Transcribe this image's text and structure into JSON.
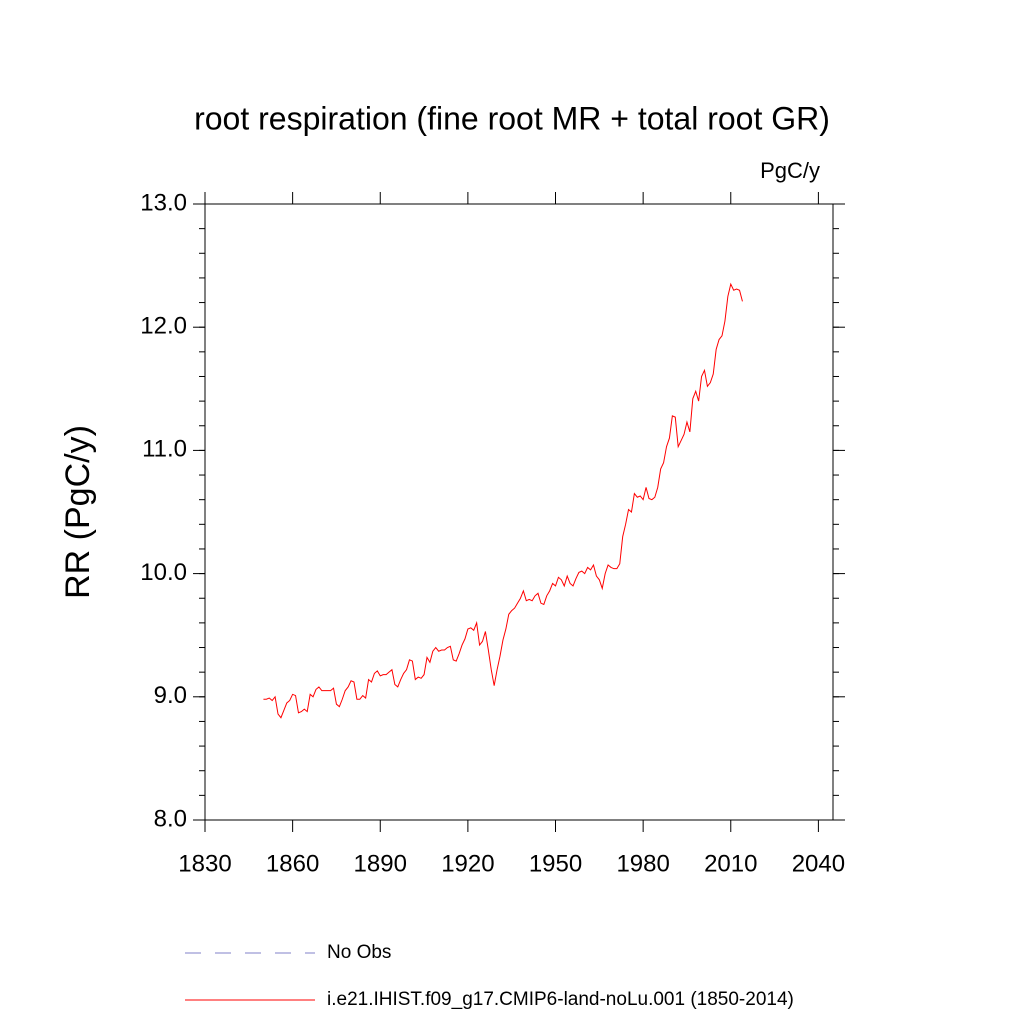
{
  "chart_data": {
    "type": "line",
    "title": "root respiration (fine root MR + total root GR)",
    "units": "PgC/y",
    "y_label": "RR  (PgC/y)",
    "xlim": [
      1830,
      2045
    ],
    "xticks": [
      1830,
      1860,
      1890,
      1920,
      1950,
      1980,
      2010,
      2040
    ],
    "ylim": [
      8,
      13
    ],
    "yticks": [
      {
        "value": 8,
        "label": "8.0"
      },
      {
        "value": 9,
        "label": "9.0"
      },
      {
        "value": 10,
        "label": "10.0"
      },
      {
        "value": 11,
        "label": "11.0"
      },
      {
        "value": 12,
        "label": "12.0"
      },
      {
        "value": 13,
        "label": "13.0"
      }
    ],
    "y_minor_step": 0.2,
    "obs": {
      "name": "No Obs",
      "color": "#8080c8",
      "dashed": true
    },
    "x": [
      1850,
      1851,
      1852,
      1853,
      1854,
      1855,
      1856,
      1857,
      1858,
      1859,
      1860,
      1861,
      1862,
      1863,
      1864,
      1865,
      1866,
      1867,
      1868,
      1869,
      1870,
      1871,
      1872,
      1873,
      1874,
      1875,
      1876,
      1877,
      1878,
      1879,
      1880,
      1881,
      1882,
      1883,
      1884,
      1885,
      1886,
      1887,
      1888,
      1889,
      1890,
      1891,
      1892,
      1893,
      1894,
      1895,
      1896,
      1897,
      1898,
      1899,
      1900,
      1901,
      1902,
      1903,
      1904,
      1905,
      1906,
      1907,
      1908,
      1909,
      1910,
      1911,
      1912,
      1913,
      1914,
      1915,
      1916,
      1917,
      1918,
      1919,
      1920,
      1921,
      1922,
      1923,
      1924,
      1925,
      1926,
      1927,
      1928,
      1929,
      1930,
      1931,
      1932,
      1933,
      1934,
      1935,
      1936,
      1937,
      1938,
      1939,
      1940,
      1941,
      1942,
      1943,
      1944,
      1945,
      1946,
      1947,
      1948,
      1949,
      1950,
      1951,
      1952,
      1953,
      1954,
      1955,
      1956,
      1957,
      1958,
      1959,
      1960,
      1961,
      1962,
      1963,
      1964,
      1965,
      1966,
      1967,
      1968,
      1969,
      1970,
      1971,
      1972,
      1973,
      1974,
      1975,
      1976,
      1977,
      1978,
      1979,
      1980,
      1981,
      1982,
      1983,
      1984,
      1985,
      1986,
      1987,
      1988,
      1989,
      1990,
      1991,
      1992,
      1993,
      1994,
      1995,
      1996,
      1997,
      1998,
      1999,
      2000,
      2001,
      2002,
      2003,
      2004,
      2005,
      2006,
      2007,
      2008,
      2009,
      2010,
      2011,
      2012,
      2013,
      2014
    ],
    "series": [
      {
        "name": "i.e21.IHIST.f09_g17.CMIP6-land-noLu.001 (1850-2014)",
        "color": "#ff0000",
        "values": [
          8.98,
          8.98,
          8.99,
          8.97,
          9.0,
          8.86,
          8.83,
          8.89,
          8.95,
          8.97,
          9.02,
          9.01,
          8.87,
          8.88,
          8.9,
          8.88,
          9.02,
          9.0,
          9.06,
          9.08,
          9.05,
          9.05,
          9.05,
          9.05,
          9.07,
          8.94,
          8.92,
          8.98,
          9.05,
          9.08,
          9.13,
          9.12,
          8.98,
          8.98,
          9.01,
          8.99,
          9.14,
          9.12,
          9.19,
          9.21,
          9.17,
          9.18,
          9.18,
          9.2,
          9.22,
          9.1,
          9.08,
          9.14,
          9.19,
          9.22,
          9.3,
          9.29,
          9.14,
          9.16,
          9.15,
          9.18,
          9.32,
          9.28,
          9.37,
          9.4,
          9.37,
          9.38,
          9.38,
          9.4,
          9.41,
          9.3,
          9.29,
          9.35,
          9.42,
          9.47,
          9.55,
          9.56,
          9.54,
          9.6,
          9.42,
          9.45,
          9.53,
          9.38,
          9.22,
          9.09,
          9.22,
          9.33,
          9.46,
          9.55,
          9.67,
          9.7,
          9.72,
          9.76,
          9.8,
          9.86,
          9.78,
          9.79,
          9.78,
          9.82,
          9.84,
          9.76,
          9.75,
          9.82,
          9.86,
          9.92,
          9.9,
          9.97,
          9.95,
          9.9,
          9.98,
          9.92,
          9.9,
          9.96,
          10.01,
          10.02,
          10.0,
          10.05,
          10.03,
          10.07,
          9.98,
          9.95,
          9.88,
          10.0,
          10.07,
          10.05,
          10.04,
          10.04,
          10.08,
          10.3,
          10.4,
          10.52,
          10.5,
          10.65,
          10.62,
          10.63,
          10.6,
          10.7,
          10.61,
          10.6,
          10.62,
          10.7,
          10.85,
          10.9,
          11.03,
          11.1,
          11.28,
          11.27,
          11.03,
          11.08,
          11.13,
          11.23,
          11.15,
          11.42,
          11.48,
          11.4,
          11.6,
          11.65,
          11.52,
          11.55,
          11.62,
          11.82,
          11.9,
          11.93,
          12.05,
          12.25,
          12.35,
          12.3,
          12.31,
          12.3,
          12.21
        ]
      }
    ]
  }
}
